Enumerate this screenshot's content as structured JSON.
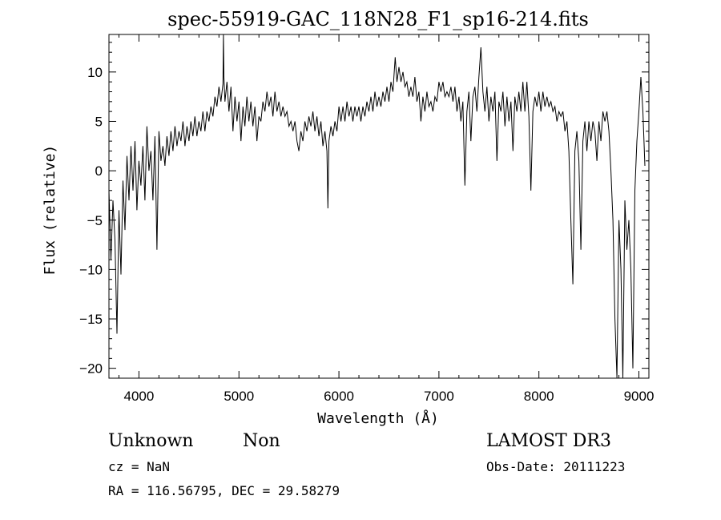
{
  "chart_data": {
    "type": "line",
    "title": "spec-55919-GAC_118N28_F1_sp16-214.fits",
    "xlabel": "Wavelength (Å)",
    "ylabel": "Flux (relative)",
    "xlim": [
      3700,
      9100
    ],
    "ylim": [
      -21,
      13.8
    ],
    "x_ticks": [
      4000,
      5000,
      6000,
      7000,
      8000,
      9000
    ],
    "y_ticks": [
      -20,
      -15,
      -10,
      -5,
      0,
      5,
      10
    ],
    "grid": false,
    "legend": "none",
    "series": [
      {
        "color": "#000000",
        "points": [
          [
            3700,
            -2
          ],
          [
            3720,
            -9
          ],
          [
            3740,
            -3
          ],
          [
            3760,
            -7
          ],
          [
            3780,
            -16.5
          ],
          [
            3800,
            -4
          ],
          [
            3820,
            -10.5
          ],
          [
            3840,
            -1
          ],
          [
            3860,
            -6
          ],
          [
            3880,
            1.5
          ],
          [
            3900,
            -3
          ],
          [
            3920,
            2.5
          ],
          [
            3940,
            -2
          ],
          [
            3960,
            3
          ],
          [
            3980,
            -4
          ],
          [
            4000,
            1
          ],
          [
            4020,
            -1.5
          ],
          [
            4040,
            2.5
          ],
          [
            4060,
            -3
          ],
          [
            4080,
            4.5
          ],
          [
            4100,
            0
          ],
          [
            4120,
            2
          ],
          [
            4140,
            -3
          ],
          [
            4160,
            3.5
          ],
          [
            4180,
            -8
          ],
          [
            4200,
            4
          ],
          [
            4220,
            1
          ],
          [
            4240,
            2.5
          ],
          [
            4260,
            0.5
          ],
          [
            4280,
            3.5
          ],
          [
            4300,
            1.5
          ],
          [
            4320,
            4
          ],
          [
            4340,
            2
          ],
          [
            4360,
            4.5
          ],
          [
            4380,
            2.5
          ],
          [
            4400,
            4
          ],
          [
            4420,
            3
          ],
          [
            4440,
            5
          ],
          [
            4460,
            2.5
          ],
          [
            4480,
            4.5
          ],
          [
            4500,
            3
          ],
          [
            4520,
            5
          ],
          [
            4540,
            3.5
          ],
          [
            4560,
            5.5
          ],
          [
            4580,
            3.5
          ],
          [
            4600,
            5
          ],
          [
            4620,
            4
          ],
          [
            4640,
            6
          ],
          [
            4660,
            4
          ],
          [
            4680,
            6
          ],
          [
            4700,
            5
          ],
          [
            4720,
            6.5
          ],
          [
            4740,
            5.5
          ],
          [
            4760,
            7.5
          ],
          [
            4780,
            6.5
          ],
          [
            4800,
            8.5
          ],
          [
            4820,
            7
          ],
          [
            4840,
            8.8
          ],
          [
            4845,
            13.8
          ],
          [
            4850,
            9.5
          ],
          [
            4860,
            7
          ],
          [
            4880,
            9
          ],
          [
            4900,
            6
          ],
          [
            4920,
            8.5
          ],
          [
            4940,
            4
          ],
          [
            4960,
            7.5
          ],
          [
            4980,
            5
          ],
          [
            5000,
            7
          ],
          [
            5020,
            3
          ],
          [
            5040,
            6.5
          ],
          [
            5060,
            4.5
          ],
          [
            5080,
            7.5
          ],
          [
            5100,
            5
          ],
          [
            5120,
            7
          ],
          [
            5140,
            4.5
          ],
          [
            5160,
            6.5
          ],
          [
            5180,
            3
          ],
          [
            5200,
            5.5
          ],
          [
            5220,
            5
          ],
          [
            5240,
            7
          ],
          [
            5260,
            6
          ],
          [
            5280,
            8
          ],
          [
            5300,
            6.5
          ],
          [
            5320,
            7.5
          ],
          [
            5340,
            5.5
          ],
          [
            5360,
            8
          ],
          [
            5380,
            6
          ],
          [
            5400,
            7
          ],
          [
            5420,
            5.5
          ],
          [
            5440,
            6.5
          ],
          [
            5460,
            5.5
          ],
          [
            5480,
            6
          ],
          [
            5500,
            4.5
          ],
          [
            5520,
            5
          ],
          [
            5540,
            4
          ],
          [
            5560,
            5
          ],
          [
            5580,
            3
          ],
          [
            5600,
            2
          ],
          [
            5620,
            4
          ],
          [
            5640,
            3
          ],
          [
            5660,
            5
          ],
          [
            5680,
            4
          ],
          [
            5700,
            5.5
          ],
          [
            5720,
            4.5
          ],
          [
            5740,
            6
          ],
          [
            5760,
            4
          ],
          [
            5780,
            5.5
          ],
          [
            5800,
            3.5
          ],
          [
            5820,
            5
          ],
          [
            5840,
            2.5
          ],
          [
            5860,
            4
          ],
          [
            5880,
            2
          ],
          [
            5890,
            -3.8
          ],
          [
            5900,
            3
          ],
          [
            5920,
            4.5
          ],
          [
            5940,
            3.5
          ],
          [
            5960,
            5
          ],
          [
            5980,
            4
          ],
          [
            6000,
            6.5
          ],
          [
            6020,
            5
          ],
          [
            6040,
            6.5
          ],
          [
            6060,
            5
          ],
          [
            6080,
            7
          ],
          [
            6100,
            5.5
          ],
          [
            6120,
            6.5
          ],
          [
            6140,
            5
          ],
          [
            6160,
            6.5
          ],
          [
            6180,
            5.5
          ],
          [
            6200,
            6.5
          ],
          [
            6220,
            5
          ],
          [
            6240,
            6.5
          ],
          [
            6260,
            5.5
          ],
          [
            6280,
            7
          ],
          [
            6300,
            6
          ],
          [
            6320,
            7.5
          ],
          [
            6340,
            6
          ],
          [
            6360,
            8
          ],
          [
            6380,
            6.5
          ],
          [
            6400,
            7.5
          ],
          [
            6420,
            6.5
          ],
          [
            6440,
            8
          ],
          [
            6460,
            7
          ],
          [
            6480,
            8.5
          ],
          [
            6500,
            7
          ],
          [
            6520,
            9
          ],
          [
            6540,
            8
          ],
          [
            6563,
            11.5
          ],
          [
            6580,
            9
          ],
          [
            6600,
            10.5
          ],
          [
            6620,
            9
          ],
          [
            6640,
            10
          ],
          [
            6660,
            8.5
          ],
          [
            6680,
            9
          ],
          [
            6700,
            7.5
          ],
          [
            6720,
            8.5
          ],
          [
            6740,
            7.5
          ],
          [
            6760,
            9.5
          ],
          [
            6780,
            7
          ],
          [
            6800,
            8
          ],
          [
            6820,
            5
          ],
          [
            6840,
            7.5
          ],
          [
            6860,
            6
          ],
          [
            6880,
            8
          ],
          [
            6900,
            6.5
          ],
          [
            6920,
            7
          ],
          [
            6940,
            6
          ],
          [
            6960,
            7.5
          ],
          [
            6980,
            7
          ],
          [
            7000,
            9
          ],
          [
            7020,
            8
          ],
          [
            7040,
            9
          ],
          [
            7060,
            7.5
          ],
          [
            7080,
            8
          ],
          [
            7100,
            7.5
          ],
          [
            7120,
            8.5
          ],
          [
            7140,
            7
          ],
          [
            7160,
            8.5
          ],
          [
            7180,
            6
          ],
          [
            7200,
            7.5
          ],
          [
            7220,
            5
          ],
          [
            7240,
            7
          ],
          [
            7260,
            -1.5
          ],
          [
            7280,
            6
          ],
          [
            7300,
            8
          ],
          [
            7320,
            3
          ],
          [
            7340,
            7.5
          ],
          [
            7360,
            8.5
          ],
          [
            7380,
            6
          ],
          [
            7400,
            9.5
          ],
          [
            7420,
            12.5
          ],
          [
            7440,
            8
          ],
          [
            7460,
            6
          ],
          [
            7480,
            8.5
          ],
          [
            7500,
            5
          ],
          [
            7520,
            7.5
          ],
          [
            7540,
            6
          ],
          [
            7560,
            8
          ],
          [
            7580,
            1
          ],
          [
            7600,
            7
          ],
          [
            7620,
            6
          ],
          [
            7640,
            8
          ],
          [
            7660,
            4.5
          ],
          [
            7680,
            7.5
          ],
          [
            7700,
            5
          ],
          [
            7720,
            7
          ],
          [
            7740,
            2
          ],
          [
            7760,
            7.5
          ],
          [
            7780,
            6
          ],
          [
            7800,
            8
          ],
          [
            7820,
            6
          ],
          [
            7840,
            9
          ],
          [
            7860,
            6
          ],
          [
            7880,
            9
          ],
          [
            7900,
            5.5
          ],
          [
            7920,
            -2
          ],
          [
            7940,
            6
          ],
          [
            7960,
            7.5
          ],
          [
            7980,
            6.5
          ],
          [
            8000,
            8
          ],
          [
            8020,
            6
          ],
          [
            8040,
            8
          ],
          [
            8060,
            6.5
          ],
          [
            8080,
            7.5
          ],
          [
            8100,
            6.5
          ],
          [
            8120,
            7
          ],
          [
            8140,
            6
          ],
          [
            8160,
            6.5
          ],
          [
            8180,
            5
          ],
          [
            8200,
            6
          ],
          [
            8220,
            5.5
          ],
          [
            8240,
            6
          ],
          [
            8260,
            4
          ],
          [
            8280,
            5
          ],
          [
            8300,
            2
          ],
          [
            8320,
            -5
          ],
          [
            8340,
            -11.5
          ],
          [
            8360,
            2
          ],
          [
            8380,
            4
          ],
          [
            8400,
            1
          ],
          [
            8420,
            -8
          ],
          [
            8440,
            3
          ],
          [
            8460,
            5
          ],
          [
            8480,
            2
          ],
          [
            8500,
            5
          ],
          [
            8520,
            3
          ],
          [
            8540,
            5
          ],
          [
            8560,
            4
          ],
          [
            8580,
            1
          ],
          [
            8600,
            5
          ],
          [
            8620,
            3
          ],
          [
            8640,
            6
          ],
          [
            8660,
            5
          ],
          [
            8680,
            6
          ],
          [
            8700,
            4
          ],
          [
            8720,
            0
          ],
          [
            8740,
            -5
          ],
          [
            8760,
            -15
          ],
          [
            8780,
            -21
          ],
          [
            8800,
            -5
          ],
          [
            8820,
            -10
          ],
          [
            8840,
            -21
          ],
          [
            8860,
            -3
          ],
          [
            8880,
            -8
          ],
          [
            8900,
            -5
          ],
          [
            8920,
            -10
          ],
          [
            8940,
            -20
          ],
          [
            8960,
            -2
          ],
          [
            8980,
            3
          ],
          [
            9000,
            6
          ],
          [
            9020,
            9.5
          ],
          [
            9040,
            6
          ],
          [
            9060,
            0.5
          ]
        ]
      }
    ]
  },
  "footer": {
    "object_class": "Unknown",
    "subclass": "Non",
    "survey": "LAMOST DR3",
    "cz": "cz = NaN",
    "obs_date": "Obs-Date: 20111223",
    "coords": "RA = 116.56795, DEC =  29.58279"
  }
}
